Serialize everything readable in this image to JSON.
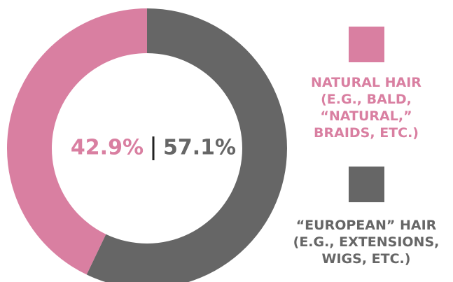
{
  "chart_data": {
    "type": "donut",
    "series": [
      {
        "name": "NATURAL HAIR\n(E.G., BALD,\n“NATURAL,”\nBRAIDS, ETC.)",
        "color": "#d97fa1",
        "values": [
          42.9
        ],
        "value_labels": [
          "42.9%"
        ]
      },
      {
        "name": "“EUROPEAN” HAIR\n(E.G., EXTENSIONS,\nWIGS, ETC.)",
        "color": "#666666",
        "values": [
          57.1
        ],
        "value_labels": [
          "57.1%"
        ]
      }
    ]
  }
}
